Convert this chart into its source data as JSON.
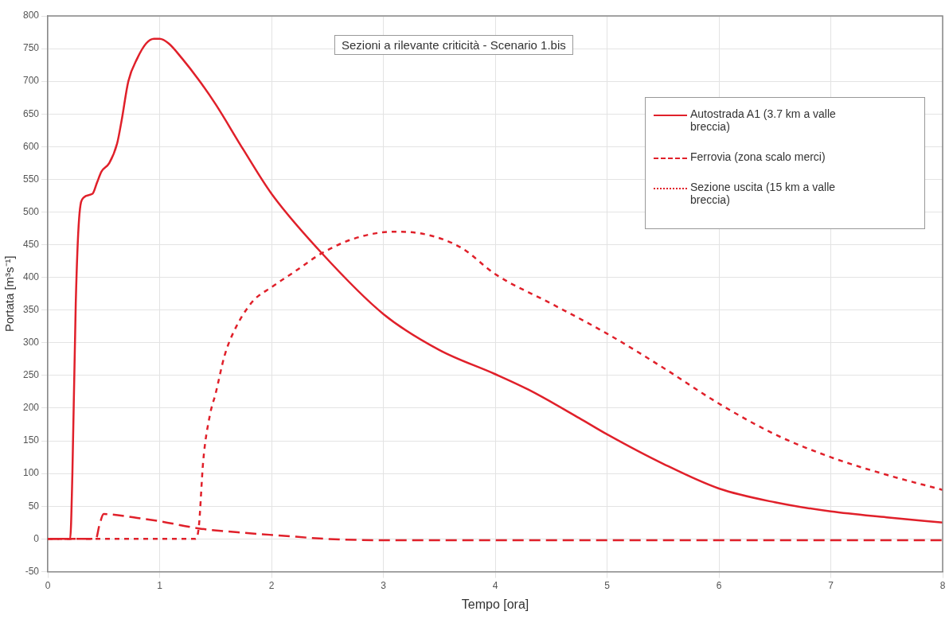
{
  "chart_data": {
    "type": "line",
    "title": "Sezioni a rilevante criticità - Scenario 1.bis",
    "xlabel": "Tempo [ora]",
    "ylabel": "Portata [m³s⁻¹]",
    "xlim": [
      0,
      8
    ],
    "xticks": [
      0,
      1,
      2,
      3,
      4,
      5,
      6,
      7,
      8
    ],
    "ylim": [
      -50,
      800
    ],
    "yticks": [
      -50,
      0,
      50,
      100,
      150,
      200,
      250,
      300,
      350,
      400,
      450,
      500,
      550,
      600,
      650,
      700,
      750,
      800
    ],
    "grid": true,
    "legend": "top right",
    "marker": "none",
    "series": [
      {
        "name": "Autostrada A1 (3.7 km a valle breccia)",
        "color": "#e0202a",
        "line_style": "solid",
        "x": [
          0,
          0.2,
          0.22,
          0.25,
          0.28,
          0.32,
          0.4,
          0.44,
          0.48,
          0.55,
          0.62,
          0.66,
          0.72,
          0.8,
          0.88,
          0.95,
          1.0,
          1.08,
          1.2,
          1.35,
          1.5,
          1.75,
          2.0,
          2.45,
          3.0,
          3.5,
          4.0,
          4.3,
          4.75,
          5.0,
          5.5,
          6.0,
          6.5,
          7.0,
          7.5,
          8.0
        ],
        "values": [
          0,
          0,
          100,
          360,
          490,
          522,
          528,
          545,
          562,
          575,
          605,
          640,
          700,
          735,
          758,
          765,
          765,
          758,
          735,
          702,
          665,
          595,
          528,
          437,
          344,
          289,
          252,
          228,
          185,
          160,
          115,
          77,
          56,
          42,
          33,
          25
        ]
      },
      {
        "name": "Ferrovia (zona scalo merci)",
        "color": "#e0202a",
        "line_style": "dashed",
        "x": [
          0,
          0.43,
          0.46,
          0.5,
          0.8,
          1.0,
          1.35,
          1.7,
          2.09,
          2.5,
          3.0,
          4.0,
          5.0,
          6.0,
          7.0,
          8.0
        ],
        "values": [
          0,
          0,
          20,
          38,
          32,
          27,
          16,
          10,
          5,
          0,
          -2,
          -2,
          -2,
          -2,
          -2,
          -2
        ]
      },
      {
        "name": "Sezione uscita (15 km a valle breccia)",
        "color": "#e0202a",
        "line_style": "dotted",
        "x": [
          0,
          1.32,
          1.35,
          1.39,
          1.45,
          1.5,
          1.58,
          1.66,
          1.83,
          2.0,
          2.2,
          2.45,
          2.75,
          3.1,
          3.4,
          3.7,
          4.0,
          4.5,
          5.0,
          5.5,
          6.0,
          6.5,
          7.0,
          7.5,
          8.0
        ],
        "values": [
          0,
          0,
          18,
          120,
          190,
          222,
          280,
          316,
          363,
          385,
          408,
          437,
          460,
          470,
          465,
          445,
          405,
          360,
          314,
          262,
          207,
          160,
          125,
          98,
          75
        ]
      }
    ]
  }
}
